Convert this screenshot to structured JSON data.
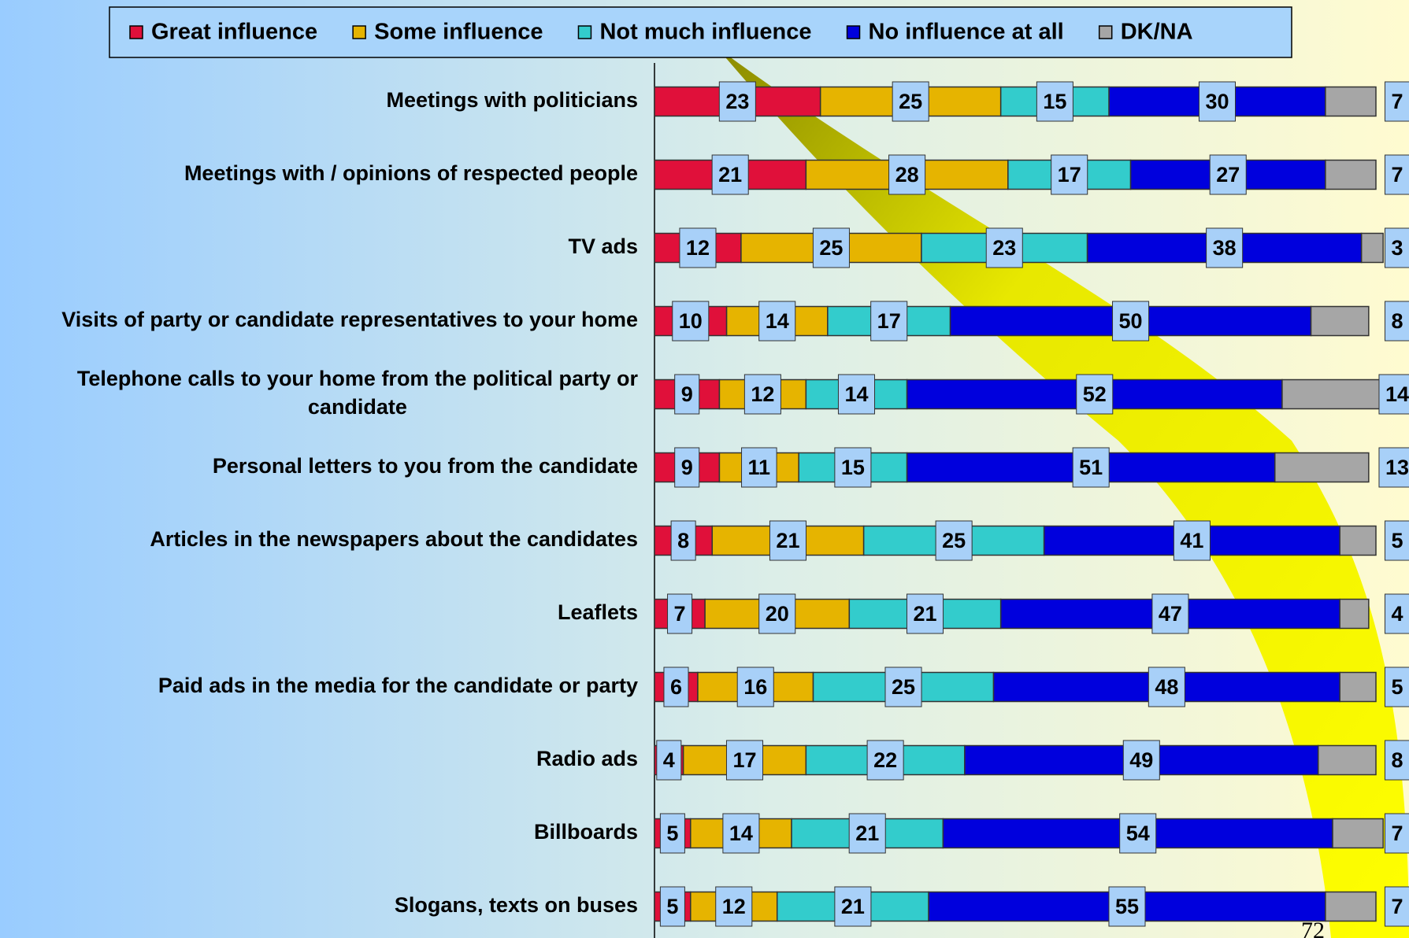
{
  "chart_data": {
    "type": "bar",
    "orientation": "horizontal",
    "stacked": true,
    "legend": "top",
    "categories": [
      "Meetings with politicians",
      "Meetings with / opinions of respected people",
      "TV ads",
      "Visits of party or candidate representatives to your home",
      "Telephone calls to your home from the political party or candidate",
      "Personal letters to you from the candidate",
      "Articles in the newspapers about the candidates",
      "Leaflets",
      "Paid ads in the media for the candidate or party",
      "Radio ads",
      "Billboards",
      "Slogans, texts on buses"
    ],
    "series": [
      {
        "name": "Great influence",
        "color": "#e0103a",
        "values": [
          23,
          21,
          12,
          10,
          9,
          9,
          8,
          7,
          6,
          4,
          5,
          5
        ]
      },
      {
        "name": "Some influence",
        "color": "#e6b400",
        "values": [
          25,
          28,
          25,
          14,
          12,
          11,
          21,
          20,
          16,
          17,
          14,
          12
        ]
      },
      {
        "name": "Not much influence",
        "color": "#33cccc",
        "values": [
          15,
          17,
          23,
          17,
          14,
          15,
          25,
          21,
          25,
          22,
          21,
          21
        ]
      },
      {
        "name": "No influence at all",
        "color": "#0000dd",
        "values": [
          30,
          27,
          38,
          50,
          52,
          51,
          41,
          47,
          48,
          49,
          54,
          55
        ]
      },
      {
        "name": "DK/NA",
        "color": "#a6a6a6",
        "values": [
          7,
          7,
          3,
          8,
          14,
          13,
          5,
          4,
          5,
          8,
          7,
          7
        ]
      }
    ],
    "xlim": [
      0,
      100
    ]
  },
  "page_number": "72"
}
